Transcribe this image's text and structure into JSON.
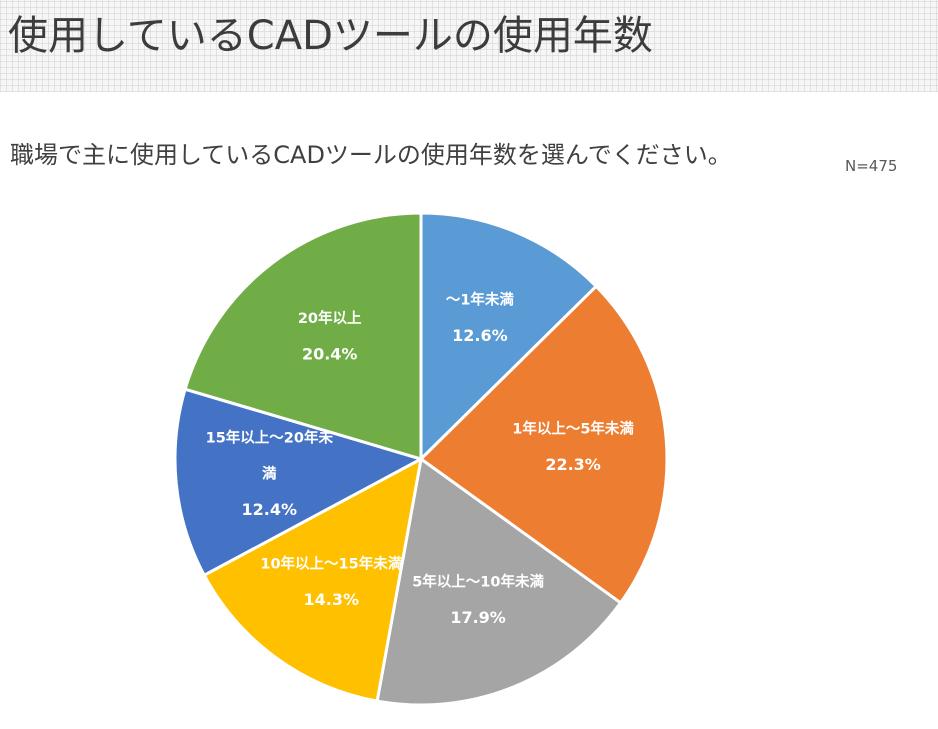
{
  "header": {
    "title": "使用しているCADツールの使用年数"
  },
  "question": "職場で主に使用しているCADツールの使用年数を選んでください。",
  "sample_size": "N=475",
  "chart_data": {
    "type": "pie",
    "title": "",
    "slices": [
      {
        "label": "～1年未満",
        "value": 12.6,
        "value_label": "12.6%",
        "color": "#5B9BD5",
        "label_lines": [
          "～1年未満"
        ]
      },
      {
        "label": "1年以上～5年未満",
        "value": 22.3,
        "value_label": "22.3%",
        "color": "#ED7D31",
        "label_lines": [
          "1年以上～5年未満"
        ]
      },
      {
        "label": "5年以上～10年未満",
        "value": 17.9,
        "value_label": "17.9%",
        "color": "#A5A5A5",
        "label_lines": [
          "5年以上～10年未満"
        ]
      },
      {
        "label": "10年以上～15年未満",
        "value": 14.3,
        "value_label": "14.3%",
        "color": "#FFC000",
        "label_lines": [
          "10年以上～15年未満"
        ]
      },
      {
        "label": "15年以上～20年未満",
        "value": 12.4,
        "value_label": "12.4%",
        "color": "#4472C4",
        "label_lines": [
          "15年以上～20年未",
          "満"
        ]
      },
      {
        "label": "20年以上",
        "value": 20.4,
        "value_label": "20.4%",
        "color": "#70AD47",
        "label_lines": [
          "20年以上"
        ]
      }
    ],
    "start_angle": "12 o'clock",
    "direction": "clockwise",
    "legend": "none"
  }
}
